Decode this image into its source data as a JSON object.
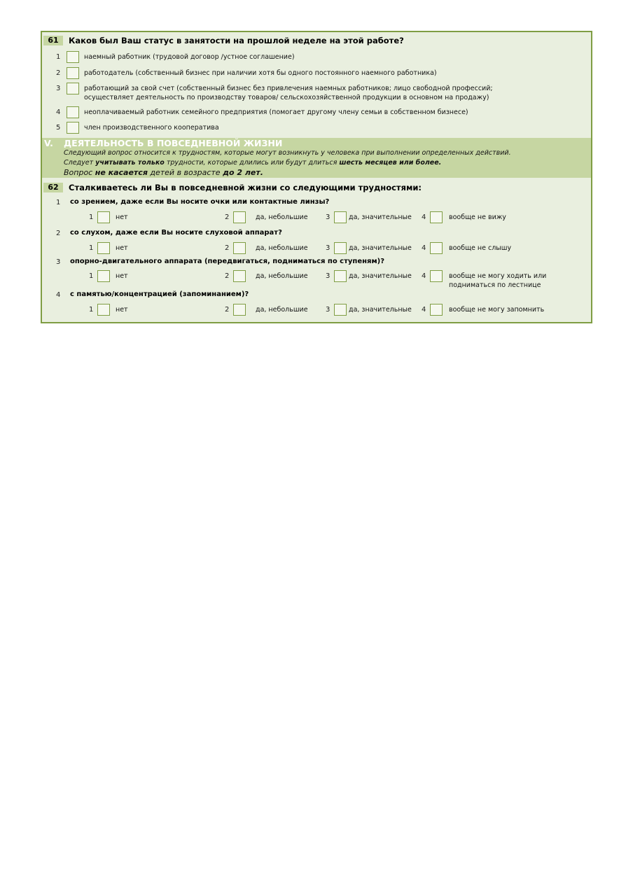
{
  "q61": {
    "number": "61",
    "title": "Каков был Ваш статус в занятости на прошлой неделе на этой работе?",
    "options": [
      {
        "n": "1",
        "line1": "наемный работник (трудовой договор /устное соглашение)",
        "line2": ""
      },
      {
        "n": "2",
        "line1": "работодатель (собственный бизнес при наличии хотя бы одного постоянного наемного работника)",
        "line2": ""
      },
      {
        "n": "3",
        "line1": "работающий за свой счет (собственный бизнес без привлечения наемных работников; лицо свободной профессий;",
        "line2": "осуществляет деятельность по производству товаров/ сельскохозяйственной продукции в основном на продажу)"
      },
      {
        "n": "4",
        "line1": "неоплачиваемый работник семейного предприятия (помогает другому члену семьи в собственном бизнесе)",
        "line2": ""
      },
      {
        "n": "5",
        "line1": "член производственного кооператива",
        "line2": ""
      }
    ]
  },
  "section": {
    "roman": "V.",
    "title": "ДЕЯТЕЛЬНОСТЬ В ПОВСЕДНЕВНОЙ ЖИЗНИ",
    "line1": "Следующий вопрос относится к трудностям, которые могут возникнуть у человека при выполнении определенных действий.",
    "line2_a": "Следует ",
    "line2_b": "учитывать только",
    "line2_c": " трудности, которые длились или будут длиться ",
    "line2_d": "шесть месяцев или более.",
    "line3_a": "Вопрос ",
    "line3_b": "не касается",
    "line3_c": " детей в возрасте ",
    "line3_d": "до 2 лет."
  },
  "q62": {
    "number": "62",
    "title": "Сталкиваетесь ли Вы в повседневной жизни со следующими трудностями:",
    "items": [
      {
        "n": "1",
        "text": "со зрением, даже если Вы носите очки или контактные линзы?",
        "answers": [
          "нет",
          "да, небольшие",
          "да, значительные",
          "вообще не вижу"
        ],
        "answer4_line2": ""
      },
      {
        "n": "2",
        "text": "со слухом, даже если Вы носите слуховой аппарат?",
        "answers": [
          "нет",
          "да, небольшие",
          "да, значительные",
          "вообще не слышу"
        ],
        "answer4_line2": ""
      },
      {
        "n": "3",
        "text": "опорно-двигательного аппарата (передвигаться, подниматься по ступеням)?",
        "answers": [
          "нет",
          "да, небольшие",
          "да, значительные",
          "вообще не могу ходить или"
        ],
        "answer4_line2": "подниматься по лестнице"
      },
      {
        "n": "4",
        "text": "с памятью/концентрацией (запоминанием)?",
        "answers": [
          "нет",
          "да, небольшие",
          "да, значительные",
          "вообще не могу запомнить"
        ],
        "answer4_line2": ""
      }
    ],
    "answer_numbers": [
      "1",
      "2",
      "3",
      "4"
    ]
  },
  "colors": {
    "border": "#7f9d43",
    "background": "#e9efdf",
    "band": "#c6d6a2"
  }
}
